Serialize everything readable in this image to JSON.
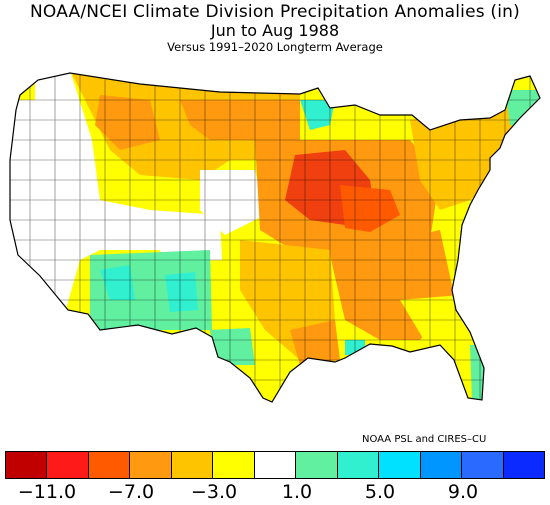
{
  "title": "NOAA/NCEI Climate Division Precipitation Anomalies (in)",
  "period": "Jun to Aug 1988",
  "baseline": "Versus 1991–2020 Longterm Average",
  "credit": "NOAA PSL and CIRES–CU",
  "legend": {
    "colors": [
      "#c00000",
      "#ff1a1a",
      "#ff5a00",
      "#ff9a10",
      "#ffc400",
      "#ffff00",
      "#ffffff",
      "#60f0a0",
      "#30f0d0",
      "#00e0ff",
      "#0096ff",
      "#2a6aff",
      "#0a2aff"
    ],
    "ticks": [
      "−11.0",
      "−7.0",
      "−3.0",
      "1.0",
      "5.0",
      "9.0"
    ]
  },
  "map_colors": {
    "dry_strong": "#f04010",
    "dry_moderate": "#ff9a10",
    "dry_mild": "#ffc400",
    "dry_slight": "#ffff00",
    "near_normal": "#ffffff",
    "wet_mild": "#60f0a0",
    "wet_moderate": "#30f0d0",
    "wet_strong": "#00e0ff",
    "background": "#ffffff",
    "outline": "#000000"
  }
}
